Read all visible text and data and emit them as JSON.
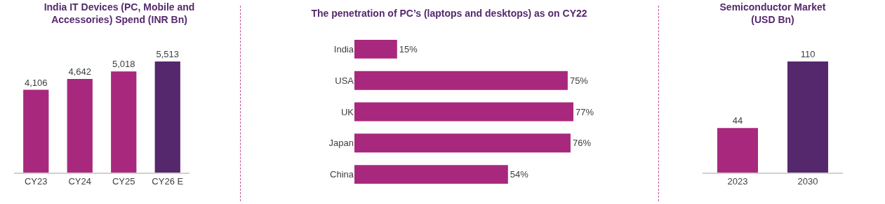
{
  "chart_data": [
    {
      "type": "bar",
      "title": "India IT Devices (PC, Mobile and Accessories) Spend (INR Bn)",
      "categories": [
        "CY23",
        "CY24",
        "CY25",
        "CY26 E"
      ],
      "values": [
        4106,
        4642,
        5018,
        5513
      ],
      "colors": [
        "#a8287e",
        "#a8287e",
        "#a8287e",
        "#55286e"
      ],
      "value_labels": [
        "4,106",
        "4,642",
        "5,018",
        "5,513"
      ]
    },
    {
      "type": "bar",
      "orientation": "horizontal",
      "title": "The penetration of PC’s (laptops and desktops) as on CY22",
      "categories": [
        "India",
        "USA",
        "UK",
        "Japan",
        "China"
      ],
      "values": [
        15,
        75,
        77,
        76,
        54
      ],
      "color": "#a8287e",
      "value_labels": [
        "15%",
        "75%",
        "77%",
        "76%",
        "54%"
      ]
    },
    {
      "type": "bar",
      "title": "Semiconductor Market (USD Bn)",
      "categories": [
        "2023",
        "2030"
      ],
      "values": [
        44,
        110
      ],
      "colors": [
        "#a8287e",
        "#55286e"
      ],
      "data_labels": true
    }
  ]
}
